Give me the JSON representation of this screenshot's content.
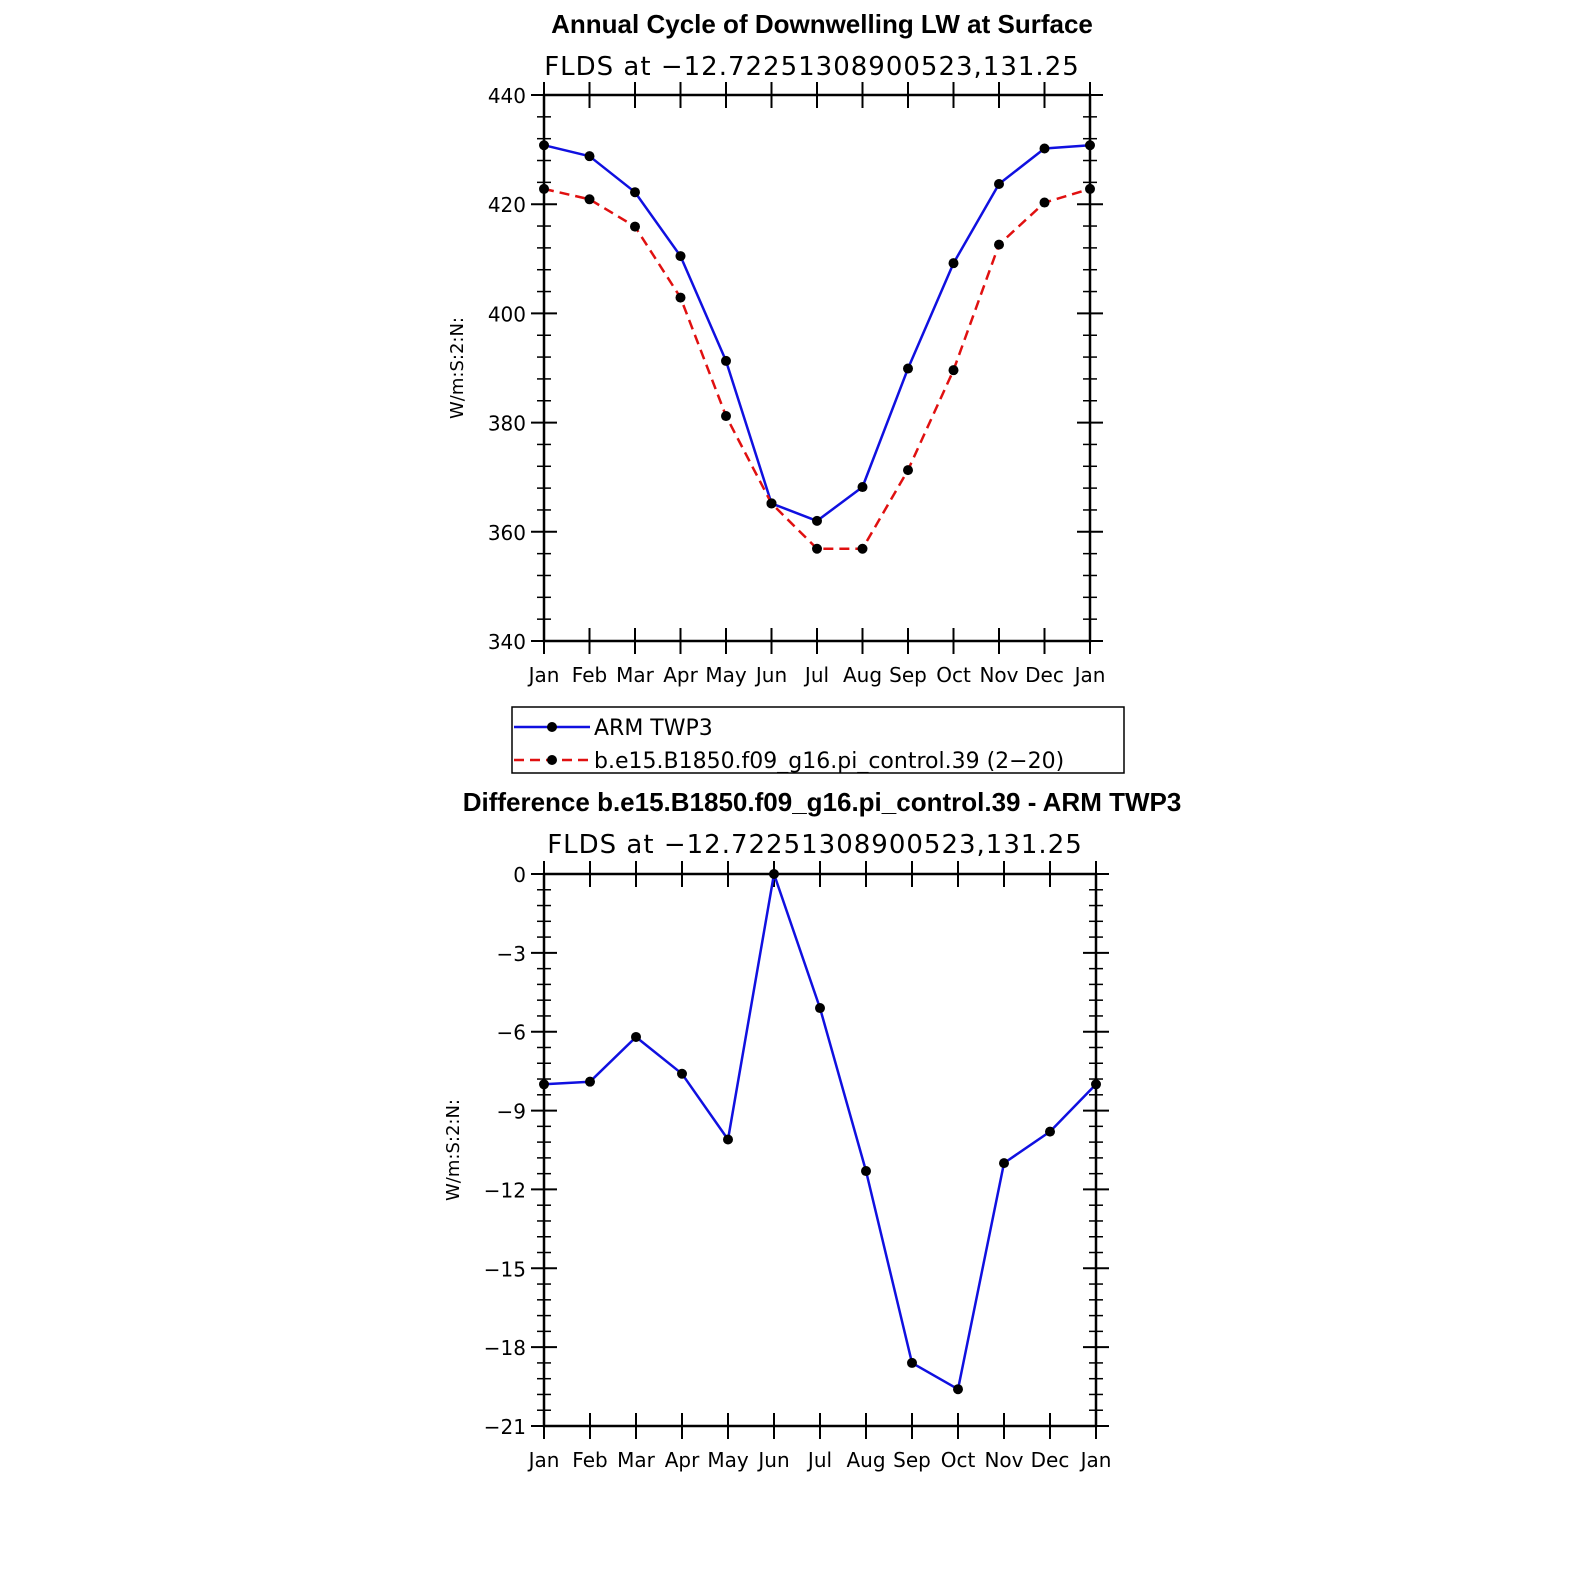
{
  "chart_data": [
    {
      "type": "line",
      "title": "Annual Cycle of Downwelling LW at Surface",
      "subtitle": "FLDS at −12.72251308900523,131.25",
      "xlabel": "",
      "ylabel": "W/m:S:2:N:",
      "categories": [
        "Jan",
        "Feb",
        "Mar",
        "Apr",
        "May",
        "Jun",
        "Jul",
        "Aug",
        "Sep",
        "Oct",
        "Nov",
        "Dec",
        "Jan"
      ],
      "ylim": [
        340,
        440
      ],
      "yticks": [
        340,
        360,
        380,
        400,
        420,
        440
      ],
      "ytick_labels": [
        "340",
        "360",
        "380",
        "400",
        "420",
        "440"
      ],
      "series": [
        {
          "name": "ARM TWP3",
          "color": "#1010e0",
          "dash": "solid",
          "values": [
            430.8,
            428.8,
            422.2,
            410.5,
            391.3,
            365.2,
            362.0,
            368.2,
            389.9,
            409.2,
            423.7,
            430.2,
            430.8
          ]
        },
        {
          "name": "b.e15.B1850.f09_g16.pi_control.39 (2−20)",
          "color": "#e01010",
          "dash": "dashed",
          "values": [
            422.8,
            420.9,
            415.9,
            402.9,
            381.2,
            365.2,
            356.9,
            356.9,
            371.3,
            389.6,
            412.6,
            420.3,
            422.8
          ]
        }
      ],
      "legend": {
        "position": "below",
        "entries": [
          "ARM TWP3",
          "b.e15.B1850.f09_g16.pi_control.39 (2−20)"
        ]
      }
    },
    {
      "type": "line",
      "title": "Difference b.e15.B1850.f09_g16.pi_control.39 - ARM TWP3",
      "subtitle": "FLDS at −12.72251308900523,131.25",
      "xlabel": "",
      "ylabel": "W/m:S:2:N:",
      "categories": [
        "Jan",
        "Feb",
        "Mar",
        "Apr",
        "May",
        "Jun",
        "Jul",
        "Aug",
        "Sep",
        "Oct",
        "Nov",
        "Dec",
        "Jan"
      ],
      "ylim": [
        -21,
        0
      ],
      "yticks": [
        -21,
        -18,
        -15,
        -12,
        -9,
        -6,
        -3,
        0
      ],
      "ytick_labels": [
        "−21",
        "−18",
        "−15",
        "−12",
        "−9",
        "−6",
        "−3",
        "0"
      ],
      "series": [
        {
          "name": "Difference",
          "color": "#1010e0",
          "dash": "solid",
          "values": [
            -8.0,
            -7.9,
            -6.2,
            -7.6,
            -10.1,
            0.0,
            -5.1,
            -11.3,
            -18.6,
            -19.6,
            -11.0,
            -9.8,
            -8.0
          ]
        }
      ]
    }
  ]
}
